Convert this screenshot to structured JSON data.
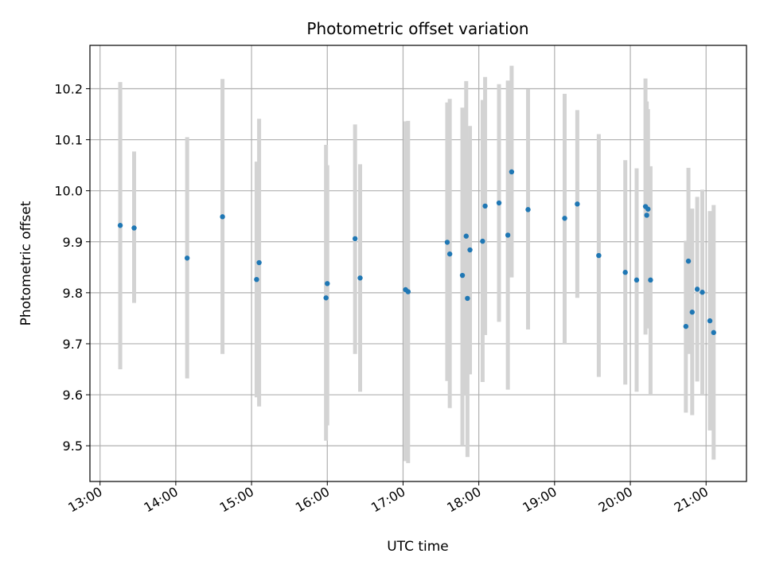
{
  "chart_data": {
    "type": "scatter",
    "title": "Photometric offset variation",
    "xlabel": "UTC time",
    "ylabel": "Photometric offset",
    "xlim": [
      "12:52",
      "21:32"
    ],
    "ylim": [
      9.43,
      10.285
    ],
    "grid": true,
    "x_ticks": [
      "13:00",
      "14:00",
      "15:00",
      "16:00",
      "17:00",
      "18:00",
      "19:00",
      "20:00",
      "21:00"
    ],
    "y_ticks": [
      9.5,
      9.6,
      9.7,
      9.8,
      9.9,
      10.0,
      10.1,
      10.2
    ],
    "colors": {
      "point": "#1f77b4",
      "errorbar": "#d3d3d3",
      "grid": "#b0b0b0"
    },
    "points": [
      {
        "time": "13:16",
        "y": 9.932,
        "ylow": 9.65,
        "yhigh": 10.213
      },
      {
        "time": "13:27",
        "y": 9.927,
        "ylow": 9.78,
        "yhigh": 10.077
      },
      {
        "time": "14:09",
        "y": 9.868,
        "ylow": 9.632,
        "yhigh": 10.105
      },
      {
        "time": "14:37",
        "y": 9.949,
        "ylow": 9.68,
        "yhigh": 10.219
      },
      {
        "time": "15:04",
        "y": 9.826,
        "ylow": 9.595,
        "yhigh": 10.057
      },
      {
        "time": "15:06",
        "y": 9.859,
        "ylow": 9.577,
        "yhigh": 10.141
      },
      {
        "time": "15:59",
        "y": 9.79,
        "ylow": 9.51,
        "yhigh": 10.09
      },
      {
        "time": "16:00",
        "y": 9.818,
        "ylow": 9.54,
        "yhigh": 10.05
      },
      {
        "time": "16:22",
        "y": 9.906,
        "ylow": 9.68,
        "yhigh": 10.13
      },
      {
        "time": "16:26",
        "y": 9.829,
        "ylow": 9.606,
        "yhigh": 10.052
      },
      {
        "time": "17:02",
        "y": 9.806,
        "ylow": 9.47,
        "yhigh": 10.136
      },
      {
        "time": "17:04",
        "y": 9.802,
        "ylow": 9.466,
        "yhigh": 10.137
      },
      {
        "time": "17:35",
        "y": 9.899,
        "ylow": 9.627,
        "yhigh": 10.173
      },
      {
        "time": "17:37",
        "y": 9.876,
        "ylow": 9.574,
        "yhigh": 10.18
      },
      {
        "time": "17:47",
        "y": 9.834,
        "ylow": 9.5,
        "yhigh": 10.163
      },
      {
        "time": "17:50",
        "y": 9.911,
        "ylow": 9.6,
        "yhigh": 10.215
      },
      {
        "time": "17:51",
        "y": 9.789,
        "ylow": 9.478,
        "yhigh": 10.1
      },
      {
        "time": "17:53",
        "y": 9.884,
        "ylow": 9.64,
        "yhigh": 10.127
      },
      {
        "time": "18:03",
        "y": 9.901,
        "ylow": 9.625,
        "yhigh": 10.178
      },
      {
        "time": "18:05",
        "y": 9.97,
        "ylow": 9.717,
        "yhigh": 10.223
      },
      {
        "time": "18:16",
        "y": 9.976,
        "ylow": 9.743,
        "yhigh": 10.209
      },
      {
        "time": "18:23",
        "y": 9.913,
        "ylow": 9.61,
        "yhigh": 10.216
      },
      {
        "time": "18:26",
        "y": 10.037,
        "ylow": 9.83,
        "yhigh": 10.245
      },
      {
        "time": "18:39",
        "y": 9.963,
        "ylow": 9.728,
        "yhigh": 10.199
      },
      {
        "time": "19:08",
        "y": 9.946,
        "ylow": 9.7,
        "yhigh": 10.19
      },
      {
        "time": "19:18",
        "y": 9.974,
        "ylow": 9.79,
        "yhigh": 10.158
      },
      {
        "time": "19:35",
        "y": 9.873,
        "ylow": 9.635,
        "yhigh": 10.111
      },
      {
        "time": "19:56",
        "y": 9.84,
        "ylow": 9.62,
        "yhigh": 10.06
      },
      {
        "time": "20:05",
        "y": 9.825,
        "ylow": 9.606,
        "yhigh": 10.044
      },
      {
        "time": "20:12",
        "y": 9.969,
        "ylow": 9.718,
        "yhigh": 10.22
      },
      {
        "time": "20:13",
        "y": 9.952,
        "ylow": 9.73,
        "yhigh": 10.175
      },
      {
        "time": "20:14",
        "y": 9.964,
        "ylow": 9.768,
        "yhigh": 10.16
      },
      {
        "time": "20:16",
        "y": 9.825,
        "ylow": 9.6,
        "yhigh": 10.048
      },
      {
        "time": "20:44",
        "y": 9.734,
        "ylow": 9.565,
        "yhigh": 9.902
      },
      {
        "time": "20:46",
        "y": 9.862,
        "ylow": 9.68,
        "yhigh": 10.045
      },
      {
        "time": "20:49",
        "y": 9.762,
        "ylow": 9.56,
        "yhigh": 9.965
      },
      {
        "time": "20:53",
        "y": 9.807,
        "ylow": 9.626,
        "yhigh": 9.988
      },
      {
        "time": "20:57",
        "y": 9.801,
        "ylow": 9.6,
        "yhigh": 10.002
      },
      {
        "time": "21:03",
        "y": 9.745,
        "ylow": 9.53,
        "yhigh": 9.96
      },
      {
        "time": "21:06",
        "y": 9.722,
        "ylow": 9.473,
        "yhigh": 9.972
      }
    ]
  }
}
